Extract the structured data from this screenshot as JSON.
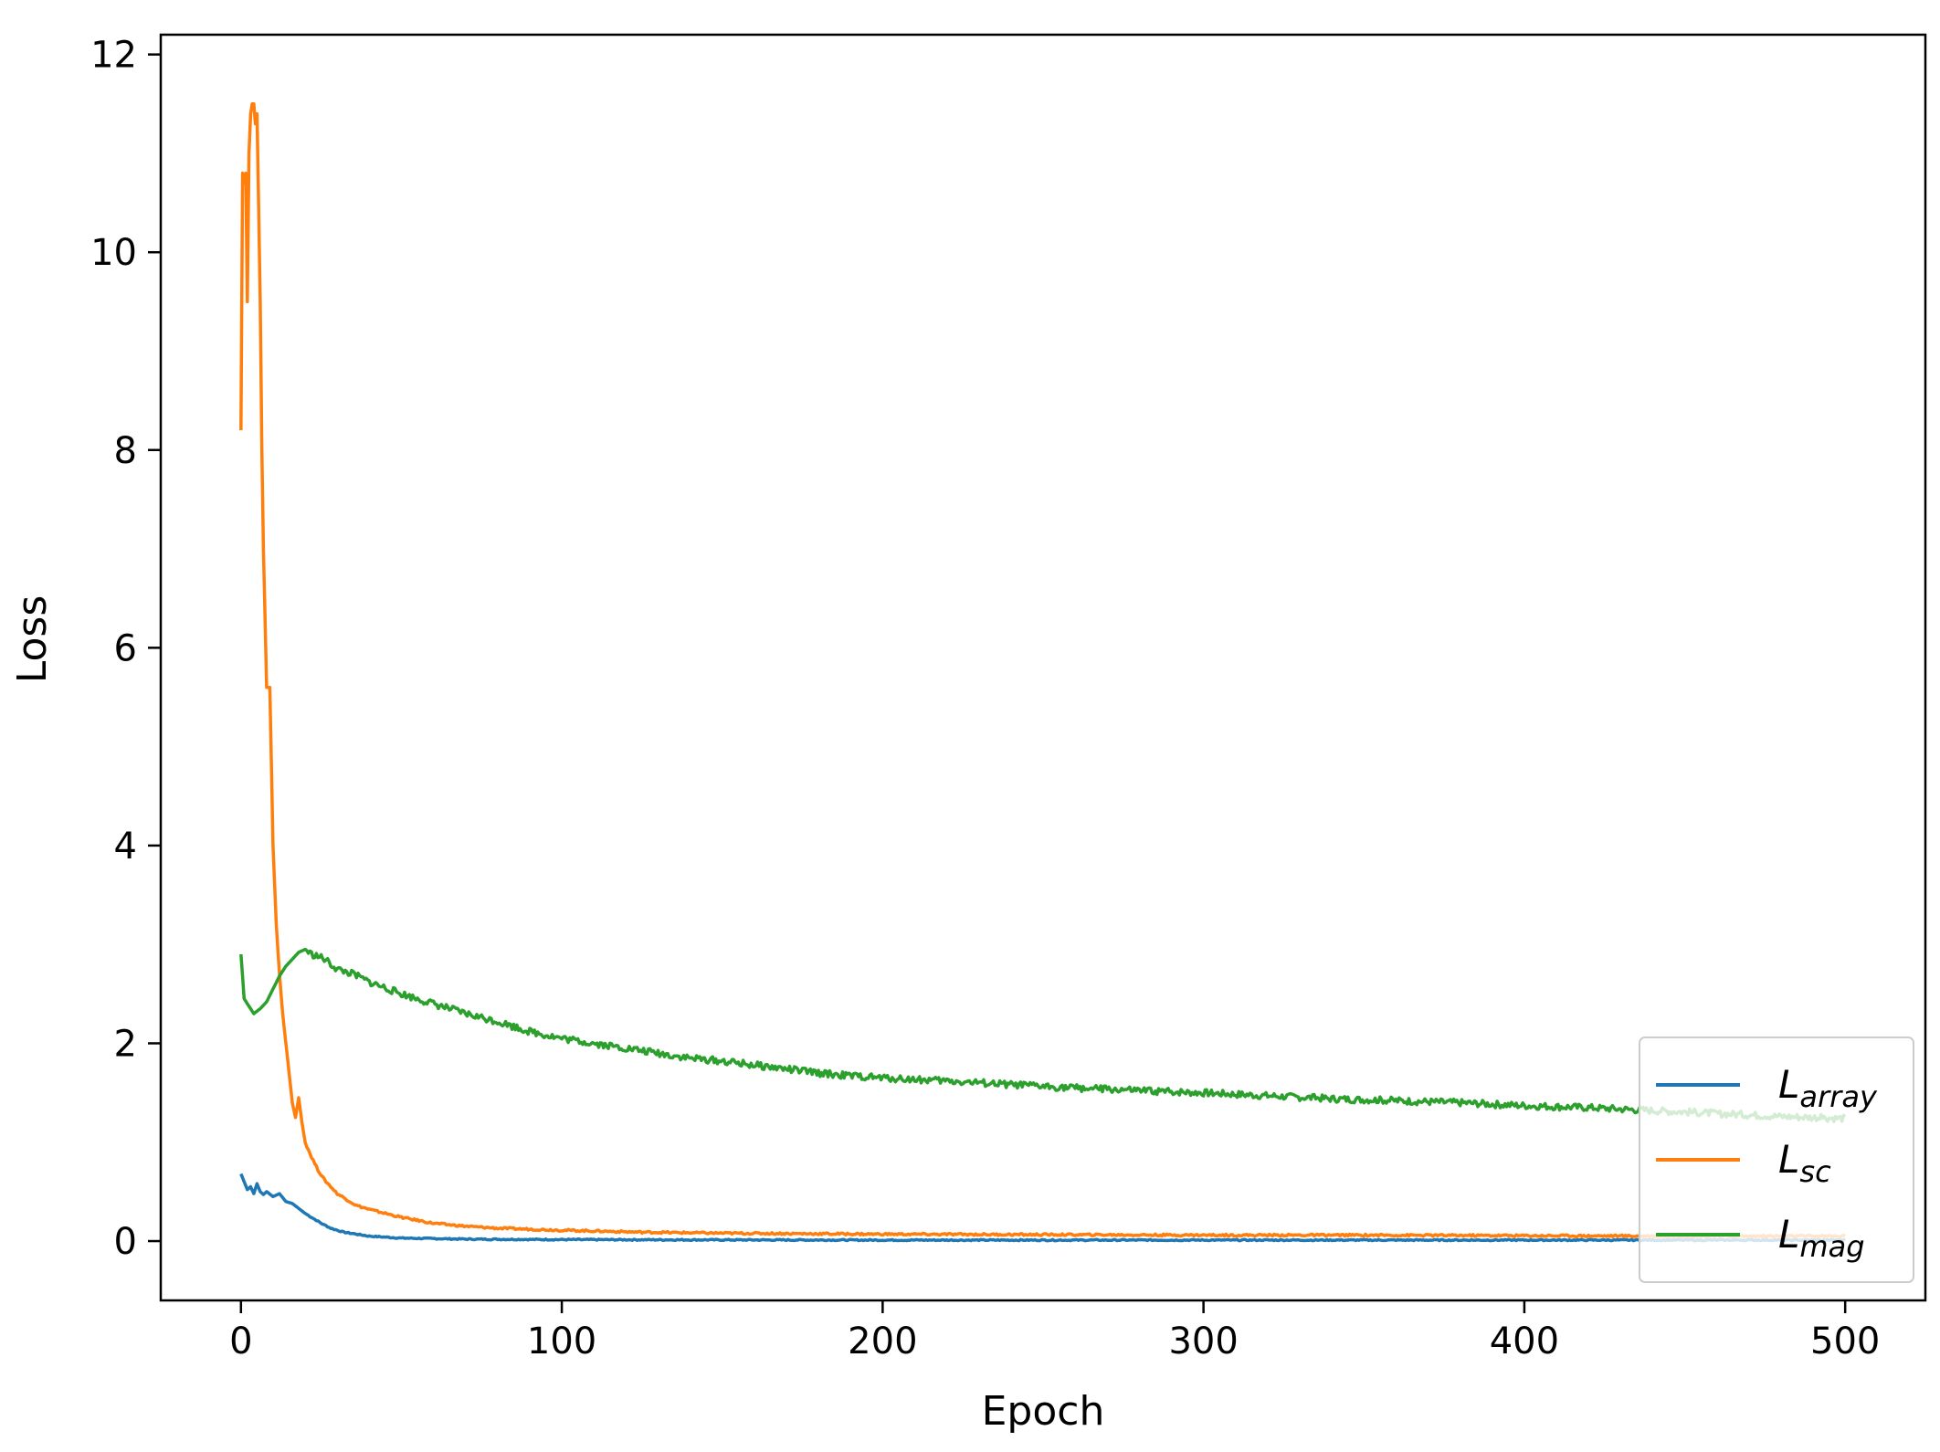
{
  "chart_data": {
    "type": "line",
    "xlabel": "Epoch",
    "ylabel": "Loss",
    "xlim": [
      -25,
      525
    ],
    "ylim": [
      -0.6,
      12.2
    ],
    "xticks": [
      0,
      100,
      200,
      300,
      400,
      500
    ],
    "yticks": [
      0,
      2,
      4,
      6,
      8,
      10,
      12
    ],
    "grid": false,
    "legend_position": "lower-right",
    "series": [
      {
        "name": "L",
        "subscript": "array",
        "color": "#1f77b4",
        "x": [
          0,
          1,
          2,
          3,
          4,
          5,
          6,
          7,
          8,
          10,
          12,
          14,
          16,
          18,
          20,
          22,
          25,
          28,
          32,
          36,
          40,
          45,
          50,
          60,
          70,
          80,
          100,
          150,
          200,
          250,
          300,
          350,
          400,
          450,
          500
        ],
        "y": [
          0.68,
          0.6,
          0.52,
          0.55,
          0.48,
          0.58,
          0.5,
          0.47,
          0.5,
          0.45,
          0.48,
          0.4,
          0.38,
          0.33,
          0.28,
          0.24,
          0.18,
          0.13,
          0.09,
          0.07,
          0.05,
          0.04,
          0.03,
          0.025,
          0.02,
          0.018,
          0.015,
          0.012,
          0.01,
          0.01,
          0.01,
          0.01,
          0.01,
          0.01,
          0.01
        ]
      },
      {
        "name": "L",
        "subscript": "sc",
        "color": "#ff7f0e",
        "x": [
          0,
          0.5,
          1,
          1.5,
          2,
          2.5,
          3,
          3.5,
          4,
          4.5,
          5,
          5.5,
          6,
          6.5,
          7,
          8,
          9,
          10,
          11,
          12,
          13,
          14,
          15,
          16,
          17,
          18,
          19,
          20,
          22,
          24,
          26,
          28,
          30,
          33,
          36,
          40,
          45,
          50,
          60,
          70,
          80,
          90,
          100,
          125,
          150,
          200,
          250,
          300,
          350,
          400,
          450,
          500
        ],
        "y": [
          8.2,
          10.8,
          10.7,
          10.8,
          9.5,
          11.0,
          11.4,
          11.5,
          11.5,
          11.3,
          11.4,
          10.5,
          9.5,
          8.0,
          7.0,
          5.6,
          5.6,
          4.0,
          3.2,
          2.7,
          2.3,
          2.0,
          1.7,
          1.4,
          1.25,
          1.45,
          1.2,
          1.0,
          0.85,
          0.72,
          0.62,
          0.55,
          0.48,
          0.42,
          0.36,
          0.32,
          0.28,
          0.24,
          0.18,
          0.15,
          0.13,
          0.12,
          0.11,
          0.09,
          0.08,
          0.07,
          0.065,
          0.06,
          0.06,
          0.055,
          0.05,
          0.05
        ]
      },
      {
        "name": "L",
        "subscript": "mag",
        "color": "#2ca02c",
        "x": [
          0,
          1,
          2,
          4,
          6,
          8,
          10,
          12,
          14,
          16,
          18,
          20,
          22,
          24,
          26,
          28,
          30,
          35,
          40,
          50,
          60,
          70,
          80,
          90,
          100,
          110,
          120,
          130,
          140,
          150,
          160,
          170,
          180,
          190,
          200,
          220,
          240,
          260,
          280,
          300,
          320,
          340,
          360,
          380,
          400,
          420,
          440,
          460,
          480,
          500
        ],
        "y": [
          2.9,
          2.45,
          2.4,
          2.3,
          2.35,
          2.42,
          2.55,
          2.68,
          2.78,
          2.85,
          2.92,
          2.95,
          2.9,
          2.88,
          2.85,
          2.8,
          2.75,
          2.7,
          2.62,
          2.5,
          2.4,
          2.3,
          2.22,
          2.12,
          2.05,
          2.0,
          1.95,
          1.9,
          1.85,
          1.82,
          1.78,
          1.74,
          1.7,
          1.67,
          1.65,
          1.62,
          1.58,
          1.55,
          1.52,
          1.5,
          1.47,
          1.44,
          1.42,
          1.4,
          1.37,
          1.35,
          1.32,
          1.29,
          1.26,
          1.24
        ]
      }
    ]
  }
}
